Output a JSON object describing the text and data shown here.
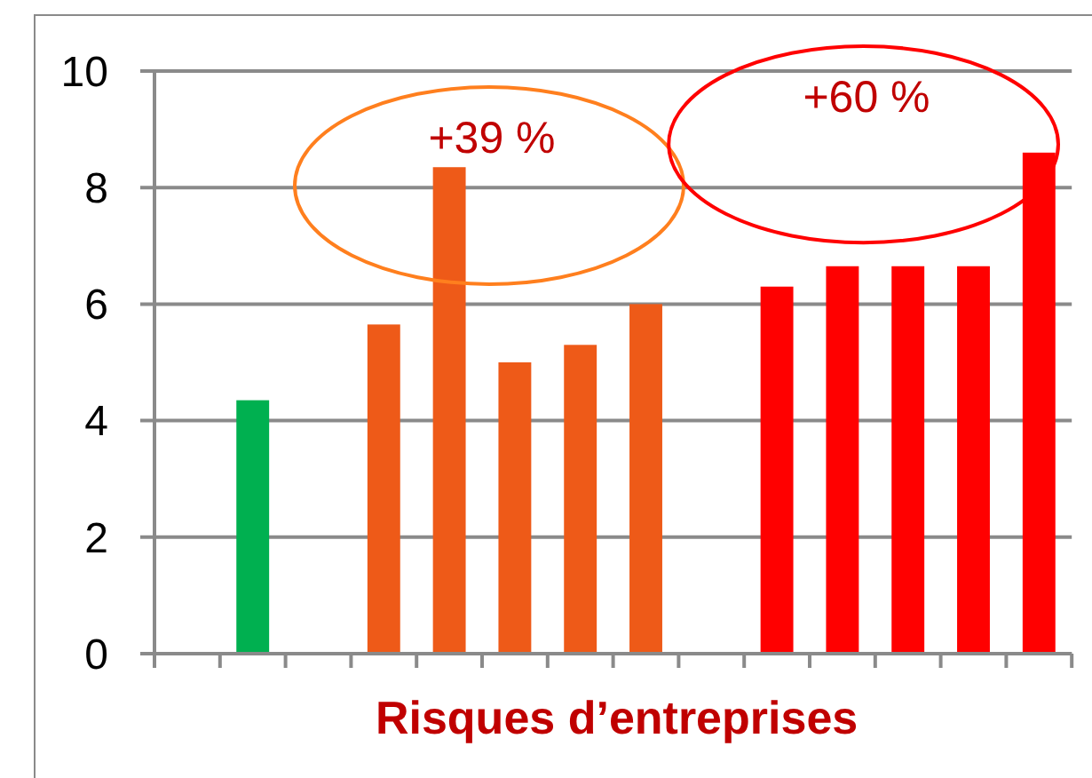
{
  "chart_data": {
    "type": "bar",
    "xlabel": "Risques d’entreprises",
    "categories": [
      null,
      null,
      null,
      null,
      null,
      null,
      null,
      null,
      null,
      null,
      null,
      null,
      null,
      null
    ],
    "values": [
      null,
      4.35,
      null,
      5.65,
      8.35,
      5.0,
      5.3,
      6.0,
      null,
      6.3,
      6.65,
      6.65,
      6.65,
      8.6
    ],
    "colors": [
      null,
      "#00b050",
      null,
      "#ee5a18",
      "#ee5a18",
      "#ee5a18",
      "#ee5a18",
      "#ee5a18",
      null,
      "#ff0000",
      "#ff0000",
      "#ff0000",
      "#ff0000",
      "#ff0000"
    ],
    "ylim": [
      0,
      10
    ],
    "yticks": [
      0,
      2,
      4,
      6,
      8,
      10
    ],
    "grid": "y",
    "annotations": [
      "+39 %",
      "+60 %"
    ]
  }
}
